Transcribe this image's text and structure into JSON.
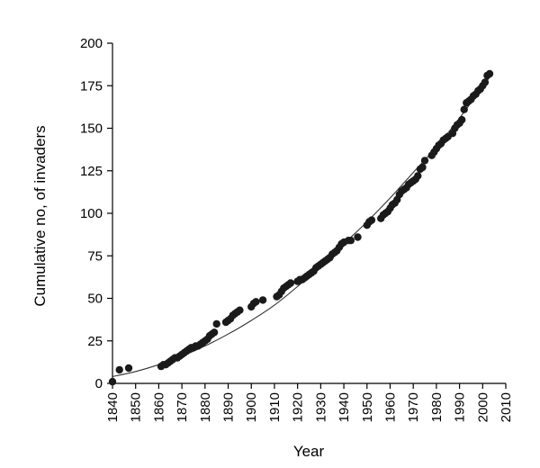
{
  "chart_data": {
    "type": "scatter",
    "xlabel": "Year",
    "ylabel": "Cumulative no, of invaders",
    "xlim": [
      1840,
      2010
    ],
    "ylim": [
      0,
      200
    ],
    "x_ticks": [
      1840,
      1850,
      1860,
      1870,
      1880,
      1890,
      1900,
      1910,
      1920,
      1930,
      1940,
      1950,
      1960,
      1970,
      1980,
      1990,
      2000,
      2010
    ],
    "y_ticks": [
      0,
      25,
      50,
      75,
      100,
      125,
      150,
      175,
      200
    ],
    "grid": false,
    "legend": "none",
    "colors": {
      "points": "#1a1a1a",
      "trend": "#333333",
      "axes": "#000000"
    },
    "series": [
      {
        "values": [
          [
            1840,
            1
          ],
          [
            1843,
            8
          ],
          [
            1847,
            9
          ],
          [
            1861,
            10
          ],
          [
            1862,
            11
          ],
          [
            1863,
            11
          ],
          [
            1864,
            12
          ],
          [
            1865,
            13
          ],
          [
            1866,
            14
          ],
          [
            1867,
            15
          ],
          [
            1868,
            15
          ],
          [
            1869,
            16
          ],
          [
            1870,
            17
          ],
          [
            1871,
            18
          ],
          [
            1872,
            19
          ],
          [
            1873,
            20
          ],
          [
            1874,
            21
          ],
          [
            1875,
            21
          ],
          [
            1876,
            22
          ],
          [
            1877,
            22
          ],
          [
            1878,
            23
          ],
          [
            1879,
            24
          ],
          [
            1880,
            25
          ],
          [
            1881,
            26
          ],
          [
            1882,
            28
          ],
          [
            1883,
            29
          ],
          [
            1884,
            30
          ],
          [
            1885,
            35
          ],
          [
            1889,
            36
          ],
          [
            1890,
            37
          ],
          [
            1891,
            38
          ],
          [
            1892,
            40
          ],
          [
            1893,
            41
          ],
          [
            1894,
            42
          ],
          [
            1895,
            43
          ],
          [
            1900,
            45
          ],
          [
            1901,
            47
          ],
          [
            1902,
            48
          ],
          [
            1905,
            49
          ],
          [
            1911,
            51
          ],
          [
            1912,
            52
          ],
          [
            1913,
            54
          ],
          [
            1914,
            56
          ],
          [
            1915,
            57
          ],
          [
            1916,
            58
          ],
          [
            1917,
            59
          ],
          [
            1920,
            60
          ],
          [
            1921,
            61
          ],
          [
            1922,
            61
          ],
          [
            1923,
            62
          ],
          [
            1924,
            63
          ],
          [
            1925,
            64
          ],
          [
            1926,
            65
          ],
          [
            1927,
            66
          ],
          [
            1928,
            68
          ],
          [
            1929,
            69
          ],
          [
            1930,
            70
          ],
          [
            1931,
            71
          ],
          [
            1932,
            72
          ],
          [
            1933,
            73
          ],
          [
            1934,
            74
          ],
          [
            1935,
            76
          ],
          [
            1936,
            77
          ],
          [
            1937,
            78
          ],
          [
            1938,
            80
          ],
          [
            1939,
            82
          ],
          [
            1940,
            83
          ],
          [
            1942,
            84
          ],
          [
            1943,
            84
          ],
          [
            1946,
            86
          ],
          [
            1950,
            93
          ],
          [
            1951,
            95
          ],
          [
            1952,
            96
          ],
          [
            1956,
            97
          ],
          [
            1957,
            99
          ],
          [
            1958,
            100
          ],
          [
            1959,
            101
          ],
          [
            1960,
            103
          ],
          [
            1961,
            105
          ],
          [
            1962,
            106
          ],
          [
            1963,
            108
          ],
          [
            1964,
            111
          ],
          [
            1965,
            113
          ],
          [
            1966,
            114
          ],
          [
            1967,
            115
          ],
          [
            1968,
            117
          ],
          [
            1969,
            118
          ],
          [
            1970,
            119
          ],
          [
            1971,
            120
          ],
          [
            1972,
            122
          ],
          [
            1973,
            126
          ],
          [
            1974,
            127
          ],
          [
            1975,
            131
          ],
          [
            1978,
            134
          ],
          [
            1979,
            136
          ],
          [
            1980,
            138
          ],
          [
            1981,
            140
          ],
          [
            1982,
            141
          ],
          [
            1983,
            143
          ],
          [
            1984,
            144
          ],
          [
            1985,
            145
          ],
          [
            1987,
            147
          ],
          [
            1988,
            150
          ],
          [
            1989,
            152
          ],
          [
            1990,
            153
          ],
          [
            1991,
            155
          ],
          [
            1992,
            161
          ],
          [
            1993,
            165
          ],
          [
            1994,
            166
          ],
          [
            1995,
            167
          ],
          [
            1996,
            169
          ],
          [
            1997,
            170
          ],
          [
            1998,
            172
          ],
          [
            1999,
            173
          ],
          [
            2000,
            175
          ],
          [
            2001,
            177
          ],
          [
            2002,
            181
          ],
          [
            2003,
            182
          ]
        ]
      }
    ],
    "trendline": {
      "kind": "polynomial",
      "values": [
        [
          1840,
          4
        ],
        [
          1850,
          7
        ],
        [
          1860,
          11
        ],
        [
          1870,
          16
        ],
        [
          1880,
          22
        ],
        [
          1890,
          29
        ],
        [
          1900,
          37
        ],
        [
          1910,
          46
        ],
        [
          1920,
          57
        ],
        [
          1930,
          69
        ],
        [
          1940,
          82
        ],
        [
          1950,
          95
        ],
        [
          1960,
          109
        ],
        [
          1970,
          124
        ],
        [
          1980,
          139
        ],
        [
          1990,
          156
        ],
        [
          2003,
          180
        ]
      ]
    }
  }
}
